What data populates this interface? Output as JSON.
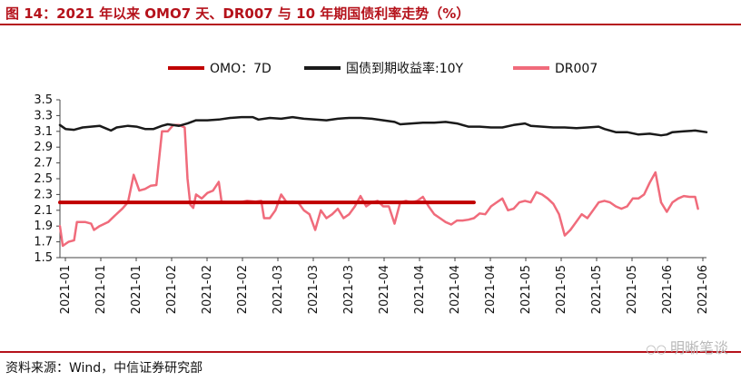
{
  "header": {
    "title": "图 14：2021 年以来 OMO7 天、DR007 与 10 年期国债利率走势（%）"
  },
  "footer": {
    "source": "资料来源：Wind，中信证券研究部"
  },
  "watermark": {
    "text": "明晰笔谈",
    "icon": "wechat-icon"
  },
  "chart_data": {
    "type": "line",
    "title": "",
    "xlabel": "",
    "ylabel": "",
    "ylim": [
      1.5,
      3.5
    ],
    "yticks": [
      "3.5",
      "3.3",
      "3.1",
      "2.9",
      "2.7",
      "2.5",
      "2.3",
      "2.1",
      "1.9",
      "1.7",
      "1.5"
    ],
    "xtick_labels": [
      "2021-01",
      "2021-01",
      "2021-01",
      "2021-02",
      "2021-02",
      "2021-02",
      "2021-03",
      "2021-03",
      "2021-03",
      "2021-04",
      "2021-04",
      "2021-04",
      "2021-04",
      "2021-05",
      "2021-05",
      "2021-05",
      "2021-05",
      "2021-06",
      "2021-06"
    ],
    "grid": false,
    "legend_position": "top",
    "series": [
      {
        "name": "OMO：7D",
        "color": "#c00000",
        "width": 4,
        "values": [
          [
            0,
            2.2
          ],
          [
            146,
            2.2
          ]
        ]
      },
      {
        "name": "国债到期收益率:10Y",
        "color": "#1a1a1a",
        "width": 2.5,
        "values": [
          [
            0,
            3.18
          ],
          [
            2,
            3.13
          ],
          [
            5,
            3.12
          ],
          [
            8,
            3.15
          ],
          [
            11,
            3.16
          ],
          [
            14,
            3.17
          ],
          [
            16,
            3.14
          ],
          [
            18,
            3.11
          ],
          [
            20,
            3.15
          ],
          [
            24,
            3.17
          ],
          [
            27,
            3.16
          ],
          [
            30,
            3.13
          ],
          [
            33,
            3.13
          ],
          [
            36,
            3.17
          ],
          [
            38,
            3.19
          ],
          [
            42,
            3.17
          ],
          [
            45,
            3.2
          ],
          [
            48,
            3.24
          ],
          [
            52,
            3.24
          ],
          [
            56,
            3.25
          ],
          [
            60,
            3.27
          ],
          [
            64,
            3.28
          ],
          [
            68,
            3.28
          ],
          [
            70,
            3.25
          ],
          [
            74,
            3.27
          ],
          [
            78,
            3.26
          ],
          [
            82,
            3.28
          ],
          [
            86,
            3.26
          ],
          [
            90,
            3.25
          ],
          [
            94,
            3.24
          ],
          [
            98,
            3.26
          ],
          [
            102,
            3.27
          ],
          [
            106,
            3.27
          ],
          [
            110,
            3.26
          ],
          [
            114,
            3.24
          ],
          [
            118,
            3.22
          ],
          [
            120,
            3.19
          ],
          [
            124,
            3.2
          ],
          [
            128,
            3.21
          ],
          [
            132,
            3.21
          ],
          [
            136,
            3.22
          ],
          [
            140,
            3.2
          ],
          [
            144,
            3.16
          ],
          [
            148,
            3.16
          ],
          [
            152,
            3.15
          ],
          [
            156,
            3.15
          ],
          [
            160,
            3.18
          ],
          [
            164,
            3.2
          ],
          [
            166,
            3.17
          ],
          [
            170,
            3.16
          ],
          [
            174,
            3.15
          ],
          [
            178,
            3.15
          ],
          [
            182,
            3.14
          ],
          [
            186,
            3.15
          ],
          [
            190,
            3.16
          ],
          [
            192,
            3.13
          ],
          [
            196,
            3.09
          ],
          [
            200,
            3.09
          ],
          [
            204,
            3.06
          ],
          [
            208,
            3.07
          ],
          [
            212,
            3.05
          ],
          [
            214,
            3.06
          ],
          [
            216,
            3.09
          ],
          [
            220,
            3.1
          ],
          [
            224,
            3.11
          ],
          [
            228,
            3.09
          ]
        ]
      },
      {
        "name": "DR007",
        "color": "#f06b7b",
        "width": 2.5,
        "values": [
          [
            0,
            1.9
          ],
          [
            1,
            1.65
          ],
          [
            3,
            1.7
          ],
          [
            5,
            1.72
          ],
          [
            6,
            1.95
          ],
          [
            9,
            1.95
          ],
          [
            11,
            1.93
          ],
          [
            12,
            1.85
          ],
          [
            14,
            1.9
          ],
          [
            17,
            1.95
          ],
          [
            19,
            2.02
          ],
          [
            22,
            2.12
          ],
          [
            24,
            2.2
          ],
          [
            26,
            2.55
          ],
          [
            28,
            2.35
          ],
          [
            30,
            2.37
          ],
          [
            32,
            2.41
          ],
          [
            34,
            2.42
          ],
          [
            36,
            3.1
          ],
          [
            38,
            3.1
          ],
          [
            40,
            3.18
          ],
          [
            42,
            3.18
          ],
          [
            44,
            3.15
          ],
          [
            45,
            2.5
          ],
          [
            46,
            2.17
          ],
          [
            47,
            2.13
          ],
          [
            48,
            2.3
          ],
          [
            50,
            2.25
          ],
          [
            52,
            2.32
          ],
          [
            54,
            2.35
          ],
          [
            56,
            2.46
          ],
          [
            57,
            2.21
          ],
          [
            60,
            2.2
          ],
          [
            63,
            2.2
          ],
          [
            66,
            2.22
          ],
          [
            69,
            2.21
          ],
          [
            71,
            2.22
          ],
          [
            72,
            2.0
          ],
          [
            74,
            2.0
          ],
          [
            76,
            2.1
          ],
          [
            78,
            2.3
          ],
          [
            80,
            2.2
          ],
          [
            82,
            2.21
          ],
          [
            84,
            2.2
          ],
          [
            86,
            2.1
          ],
          [
            88,
            2.05
          ],
          [
            90,
            1.85
          ],
          [
            92,
            2.1
          ],
          [
            94,
            2.0
          ],
          [
            96,
            2.05
          ],
          [
            98,
            2.12
          ],
          [
            100,
            2.0
          ],
          [
            102,
            2.05
          ],
          [
            104,
            2.15
          ],
          [
            106,
            2.28
          ],
          [
            108,
            2.15
          ],
          [
            110,
            2.2
          ],
          [
            112,
            2.22
          ],
          [
            114,
            2.15
          ],
          [
            116,
            2.15
          ],
          [
            118,
            1.93
          ],
          [
            120,
            2.2
          ],
          [
            122,
            2.22
          ],
          [
            124,
            2.2
          ],
          [
            126,
            2.22
          ],
          [
            128,
            2.27
          ],
          [
            130,
            2.15
          ],
          [
            132,
            2.05
          ],
          [
            134,
            2.0
          ],
          [
            136,
            1.95
          ],
          [
            138,
            1.92
          ],
          [
            140,
            1.97
          ],
          [
            142,
            1.97
          ],
          [
            144,
            1.98
          ],
          [
            146,
            2.0
          ],
          [
            148,
            2.06
          ],
          [
            150,
            2.05
          ],
          [
            152,
            2.15
          ],
          [
            154,
            2.2
          ],
          [
            156,
            2.25
          ],
          [
            158,
            2.1
          ],
          [
            160,
            2.12
          ],
          [
            162,
            2.2
          ],
          [
            164,
            2.22
          ],
          [
            166,
            2.2
          ],
          [
            168,
            2.33
          ],
          [
            170,
            2.3
          ],
          [
            172,
            2.25
          ],
          [
            174,
            2.18
          ],
          [
            176,
            2.05
          ],
          [
            178,
            1.78
          ],
          [
            180,
            1.85
          ],
          [
            182,
            1.95
          ],
          [
            184,
            2.05
          ],
          [
            186,
            2.0
          ],
          [
            188,
            2.1
          ],
          [
            190,
            2.2
          ],
          [
            192,
            2.22
          ],
          [
            194,
            2.2
          ],
          [
            196,
            2.15
          ],
          [
            198,
            2.12
          ],
          [
            200,
            2.15
          ],
          [
            202,
            2.25
          ],
          [
            204,
            2.25
          ],
          [
            206,
            2.3
          ],
          [
            208,
            2.45
          ],
          [
            210,
            2.58
          ],
          [
            212,
            2.2
          ],
          [
            214,
            2.08
          ],
          [
            216,
            2.2
          ],
          [
            218,
            2.25
          ],
          [
            220,
            2.28
          ],
          [
            222,
            2.27
          ],
          [
            224,
            2.27
          ],
          [
            225,
            2.12
          ]
        ]
      }
    ]
  }
}
